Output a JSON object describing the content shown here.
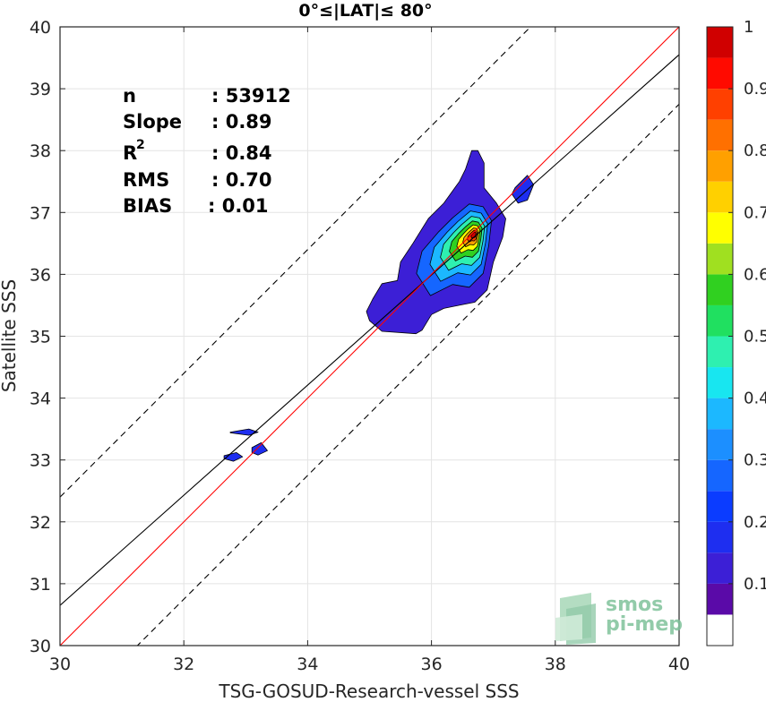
{
  "chart_data": {
    "type": "contour",
    "title": "0°≤|LAT|≤ 80°",
    "xlabel": "TSG-GOSUD-Research-vessel SSS",
    "ylabel": "Satellite SSS",
    "xlim": [
      30,
      40
    ],
    "ylim": [
      30,
      40
    ],
    "x_ticks": [
      "30",
      "32",
      "34",
      "36",
      "38",
      "40"
    ],
    "y_ticks": [
      "30",
      "31",
      "32",
      "33",
      "34",
      "35",
      "36",
      "37",
      "38",
      "39",
      "40"
    ],
    "grid": true,
    "stats": {
      "n_label": "n",
      "n_value": ": 53912",
      "slope_label": "Slope",
      "slope_value": ": 0.89",
      "r2_label": "R",
      "r2_sup": "2",
      "r2_value": ": 0.84",
      "rms_label": "RMS",
      "rms_value": ": 0.70",
      "bias_label": "BIAS",
      "bias_value": ": 0.01"
    },
    "lines": {
      "identity": {
        "slope": 1,
        "intercept": 0,
        "color": "#ff0000"
      },
      "fit": {
        "slope": 0.89,
        "intercept": 3.95,
        "color": "#000000"
      },
      "upper_bound": {
        "slope": 1,
        "intercept": 2.4,
        "style": "dashed"
      },
      "lower_bound": {
        "slope": 1,
        "intercept": -1.25,
        "style": "dashed"
      }
    },
    "density_peak": {
      "x": 36.7,
      "y": 36.7,
      "value": 1.0
    },
    "colorbar": {
      "tick_labels": [
        "0.1",
        "0.2",
        "0.3",
        "0.4",
        "0.5",
        "0.6",
        "0.7",
        "0.8",
        "0.9",
        "1"
      ],
      "tick_values": [
        0.1,
        0.2,
        0.3,
        0.4,
        0.5,
        0.6,
        0.7,
        0.8,
        0.9,
        1.0
      ],
      "colors": [
        "#ffffff",
        "#5a0aa8",
        "#3c1fd6",
        "#1e2ef0",
        "#0b3cff",
        "#1566ff",
        "#1c8fff",
        "#1cb8ff",
        "#18e6f0",
        "#2ef0b0",
        "#20e060",
        "#30d020",
        "#a0e020",
        "#ffff00",
        "#ffd000",
        "#ffa000",
        "#ff7000",
        "#ff4000",
        "#ff0a00",
        "#d00000",
        "#800000"
      ]
    }
  },
  "logo": {
    "line1": "smos",
    "line2": "pi-mep"
  }
}
